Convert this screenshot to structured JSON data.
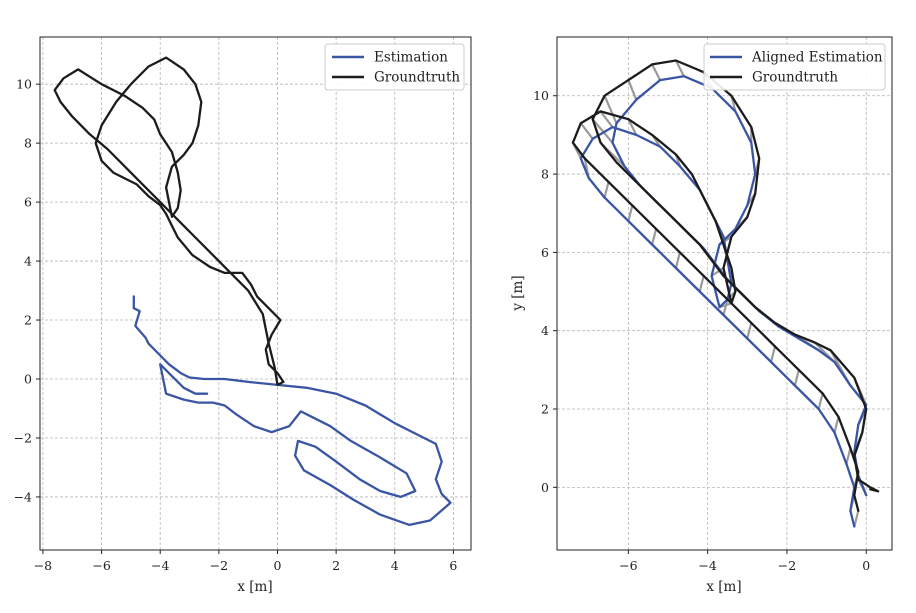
{
  "colors": {
    "estimation": "#3a55a4",
    "groundtruth": "#1c1c1c",
    "error_lines": "#9a9a9a"
  },
  "chart_data": [
    {
      "type": "line",
      "xlabel": "x [m]",
      "ylabel": "",
      "xlim": [
        -8.1,
        6.6
      ],
      "ylim": [
        -5.8,
        11.6
      ],
      "xticks": [
        -8,
        -6,
        -4,
        -2,
        0,
        2,
        4,
        6
      ],
      "yticks": [
        -4,
        -2,
        0,
        2,
        4,
        6,
        8,
        10
      ],
      "grid": true,
      "legend_position": "top-right",
      "series": [
        {
          "name": "Estimation",
          "color_key": "estimation",
          "x": [
            -4.9,
            -4.9,
            -4.7,
            -4.85,
            -4.5,
            -4.4,
            -4.1,
            -3.7,
            -3.3,
            -3.0,
            -2.5,
            -1.8,
            -1.0,
            0.0,
            1.0,
            2.0,
            3.0,
            4.0,
            4.8,
            5.4,
            5.6,
            5.4,
            5.6,
            5.9,
            5.2,
            4.5,
            3.5,
            2.6,
            1.8,
            0.9,
            0.6,
            0.7,
            1.3,
            2.0,
            2.8,
            3.5,
            4.2,
            4.7,
            4.4,
            3.4,
            2.5,
            1.8,
            1.2,
            0.8,
            0.4,
            -0.2,
            -0.8,
            -1.4,
            -1.8,
            -2.2,
            -2.7,
            -3.2,
            -3.8,
            -4.0,
            -3.6,
            -3.2,
            -2.8,
            -2.4
          ],
          "y": [
            2.8,
            2.4,
            2.3,
            1.8,
            1.4,
            1.2,
            0.9,
            0.5,
            0.2,
            0.05,
            0.0,
            0.0,
            -0.1,
            -0.2,
            -0.3,
            -0.5,
            -0.9,
            -1.5,
            -1.9,
            -2.2,
            -2.8,
            -3.4,
            -3.9,
            -4.2,
            -4.8,
            -4.95,
            -4.6,
            -4.1,
            -3.6,
            -3.1,
            -2.6,
            -2.1,
            -2.3,
            -2.8,
            -3.4,
            -3.8,
            -4.0,
            -3.8,
            -3.2,
            -2.6,
            -2.1,
            -1.6,
            -1.3,
            -1.1,
            -1.6,
            -1.8,
            -1.6,
            -1.2,
            -0.9,
            -0.8,
            -0.8,
            -0.7,
            -0.5,
            0.5,
            0.1,
            -0.3,
            -0.5,
            -0.5
          ]
        },
        {
          "name": "Groundtruth",
          "color_key": "groundtruth",
          "x": [
            0.0,
            -0.1,
            -0.3,
            -0.5,
            -1.0,
            -1.6,
            -2.2,
            -2.8,
            -3.4,
            -4.0,
            -4.6,
            -5.2,
            -5.8,
            -6.4,
            -7.0,
            -7.4,
            -7.6,
            -7.3,
            -6.8,
            -6.0,
            -5.2,
            -4.6,
            -4.2,
            -4.0,
            -3.6,
            -3.4,
            -3.3,
            -3.4,
            -3.6,
            -3.8,
            -3.6,
            -3.2,
            -2.9,
            -2.7,
            -2.6,
            -2.8,
            -3.2,
            -3.8,
            -4.4,
            -5.0,
            -5.5,
            -6.0,
            -6.2,
            -6.0,
            -5.6,
            -5.2,
            -4.8,
            -4.4,
            -4.0,
            -3.8,
            -3.6,
            -3.4,
            -2.9,
            -2.3,
            -1.8,
            -1.2,
            -0.9,
            -0.7,
            -0.3,
            0.1,
            -0.2,
            -0.4,
            -0.3,
            0.0,
            0.2,
            0.0
          ],
          "y": [
            -0.2,
            0.4,
            1.2,
            2.2,
            3.0,
            3.6,
            4.2,
            4.8,
            5.4,
            6.0,
            6.6,
            7.2,
            7.8,
            8.3,
            8.9,
            9.4,
            9.8,
            10.2,
            10.5,
            10.0,
            9.6,
            9.2,
            8.8,
            8.3,
            7.7,
            7.0,
            6.4,
            5.8,
            5.5,
            6.5,
            7.2,
            7.6,
            8.0,
            8.6,
            9.4,
            10.0,
            10.5,
            10.9,
            10.6,
            10.0,
            9.4,
            8.6,
            8.0,
            7.4,
            7.0,
            6.8,
            6.6,
            6.2,
            5.9,
            5.6,
            5.2,
            4.8,
            4.2,
            3.8,
            3.6,
            3.6,
            3.2,
            2.8,
            2.4,
            2.0,
            1.5,
            1.0,
            0.5,
            0.2,
            -0.1,
            -0.2
          ]
        }
      ]
    },
    {
      "type": "line",
      "xlabel": "x [m]",
      "ylabel": "y [m]",
      "xlim": [
        -7.8,
        0.65
      ],
      "ylim": [
        -1.6,
        11.5
      ],
      "xticks": [
        -6,
        -4,
        -2,
        0
      ],
      "yticks": [
        0,
        2,
        4,
        6,
        8,
        10
      ],
      "grid": true,
      "legend_position": "top-right",
      "series": [
        {
          "name": "Aligned Estimation",
          "color_key": "estimation",
          "x": [
            -0.3,
            -0.4,
            -0.3,
            -0.5,
            -0.8,
            -1.2,
            -1.8,
            -2.4,
            -3.0,
            -3.6,
            -4.2,
            -4.8,
            -5.4,
            -6.0,
            -6.6,
            -7.0,
            -7.2,
            -6.9,
            -6.4,
            -5.8,
            -5.2,
            -4.7,
            -4.2,
            -3.9,
            -3.6,
            -3.5,
            -3.4,
            -3.5,
            -3.7,
            -3.9,
            -3.7,
            -3.3,
            -3.0,
            -2.8,
            -2.9,
            -3.3,
            -3.9,
            -4.6,
            -5.2,
            -5.8,
            -6.3,
            -6.4,
            -6.1,
            -5.7,
            -5.3,
            -4.9,
            -4.5,
            -4.1,
            -3.8,
            -3.5,
            -3.1,
            -2.7,
            -2.2,
            -1.7,
            -1.2,
            -0.8,
            -0.4,
            0.0,
            -0.2,
            -0.3,
            -0.2,
            0.0
          ],
          "y": [
            -1.0,
            -0.6,
            0.0,
            0.6,
            1.4,
            2.0,
            2.6,
            3.2,
            3.8,
            4.4,
            5.0,
            5.6,
            6.2,
            6.8,
            7.4,
            7.9,
            8.4,
            8.9,
            9.2,
            9.0,
            8.7,
            8.2,
            7.6,
            7.0,
            6.4,
            5.8,
            5.2,
            4.8,
            4.6,
            5.4,
            6.2,
            6.6,
            7.2,
            8.0,
            8.8,
            9.6,
            10.2,
            10.5,
            10.4,
            9.9,
            9.3,
            8.8,
            8.2,
            7.7,
            7.3,
            6.9,
            6.5,
            6.1,
            5.7,
            5.3,
            4.9,
            4.5,
            4.1,
            3.8,
            3.5,
            3.2,
            2.6,
            2.1,
            1.6,
            0.9,
            0.3,
            -0.2
          ]
        },
        {
          "name": "Groundtruth",
          "color_key": "groundtruth",
          "x": [
            -0.2,
            -0.3,
            -0.2,
            -0.4,
            -0.7,
            -1.1,
            -1.7,
            -2.3,
            -2.9,
            -3.5,
            -4.1,
            -4.7,
            -5.3,
            -5.9,
            -6.5,
            -7.1,
            -7.4,
            -7.2,
            -6.7,
            -6.0,
            -5.4,
            -4.8,
            -4.4,
            -4.1,
            -3.8,
            -3.6,
            -3.4,
            -3.3,
            -3.4,
            -3.6,
            -3.4,
            -3.0,
            -2.8,
            -2.7,
            -2.9,
            -3.4,
            -4.1,
            -4.8,
            -5.4,
            -6.0,
            -6.6,
            -6.9,
            -6.7,
            -6.3,
            -5.8,
            -5.4,
            -5.0,
            -4.6,
            -4.2,
            -3.9,
            -3.6,
            -3.2,
            -2.8,
            -2.3,
            -1.8,
            -1.3,
            -0.9,
            -0.3,
            0.0,
            -0.1,
            -0.3,
            -0.2,
            0.1,
            0.3,
            0.1
          ],
          "y": [
            -0.6,
            -0.2,
            0.4,
            1.0,
            1.8,
            2.4,
            3.0,
            3.6,
            4.2,
            4.8,
            5.4,
            6.0,
            6.6,
            7.2,
            7.8,
            8.4,
            8.8,
            9.3,
            9.6,
            9.4,
            9.0,
            8.5,
            8.0,
            7.4,
            6.8,
            6.2,
            5.6,
            5.0,
            4.7,
            5.6,
            6.4,
            6.9,
            7.5,
            8.4,
            9.2,
            10.0,
            10.6,
            10.9,
            10.8,
            10.4,
            10.0,
            9.4,
            8.8,
            8.3,
            7.8,
            7.4,
            7.0,
            6.6,
            6.2,
            5.8,
            5.4,
            5.0,
            4.6,
            4.2,
            3.9,
            3.7,
            3.5,
            2.8,
            2.0,
            1.4,
            0.8,
            0.2,
            0.0,
            -0.1,
            -0.05
          ]
        }
      ]
    }
  ]
}
